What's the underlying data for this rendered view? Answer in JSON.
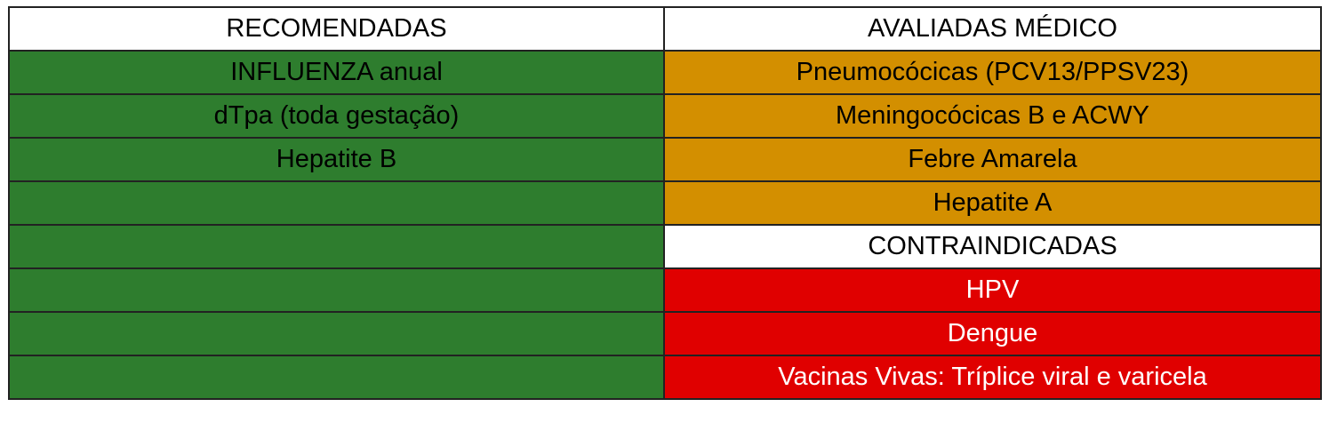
{
  "table": {
    "headers": {
      "left": "RECOMENDADAS",
      "right": "AVALIADAS MÉDICO"
    },
    "rows": [
      {
        "left": "INFLUENZA anual",
        "right": "Pneumocócicas (PCV13/PPSV23)"
      },
      {
        "left": "dTpa (toda gestação)",
        "right": "Meningocócicas B e ACWY"
      },
      {
        "left": "Hepatite B",
        "right": "Febre Amarela"
      },
      {
        "left": "",
        "right": "Hepatite A"
      },
      {
        "left": "",
        "right": "CONTRAINDICADAS"
      },
      {
        "left": "",
        "right": "HPV"
      },
      {
        "left": "",
        "right": "Dengue"
      },
      {
        "left": "",
        "right": "Vacinas Vivas: Tríplice viral e varicela"
      }
    ],
    "colors": {
      "recommended": "#2e7d2e",
      "physician_evaluated": "#d38f00",
      "contraindicated": "#e00000",
      "header": "#ffffff"
    }
  }
}
